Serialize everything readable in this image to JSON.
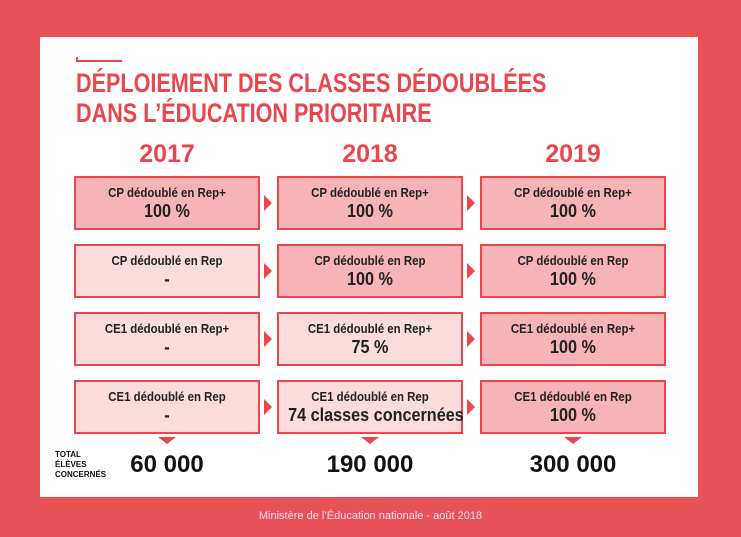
{
  "title_lines": [
    "DÉPLOIEMENT DES CLASSES DÉDOUBLÉES",
    "DANS L’ÉDUCATION PRIORITAIRE"
  ],
  "colors": {
    "accent": "#e8474e",
    "background": "#e85257",
    "full_fill": "#f6b4b6",
    "partial_fill": "#fbdcdd"
  },
  "columns": [
    {
      "year": "2017",
      "total": "60 000",
      "cells": [
        {
          "label": "CP dédoublé en Rep+",
          "value": "100 %",
          "state": "full"
        },
        {
          "label": "CP dédoublé en Rep",
          "value": "-",
          "state": "part"
        },
        {
          "label": "CE1 dédoublé en Rep+",
          "value": "-",
          "state": "part"
        },
        {
          "label": "CE1 dédoublé en Rep",
          "value": "-",
          "state": "part"
        }
      ]
    },
    {
      "year": "2018",
      "total": "190 000",
      "cells": [
        {
          "label": "CP dédoublé en Rep+",
          "value": "100 %",
          "state": "full"
        },
        {
          "label": "CP dédoublé en Rep",
          "value": "100 %",
          "state": "full"
        },
        {
          "label": "CE1 dédoublé en Rep+",
          "value": "75 %",
          "state": "part"
        },
        {
          "label": "CE1 dédoublé en Rep",
          "value": "74 classes concernées",
          "state": "part"
        }
      ]
    },
    {
      "year": "2019",
      "total": "300 000",
      "cells": [
        {
          "label": "CP dédoublé en Rep+",
          "value": "100 %",
          "state": "full"
        },
        {
          "label": "CP dédoublé en Rep",
          "value": "100 %",
          "state": "full"
        },
        {
          "label": "CE1 dédoublé en Rep+",
          "value": "100 %",
          "state": "full"
        },
        {
          "label": "CE1 dédoublé en Rep",
          "value": "100 %",
          "state": "full"
        }
      ]
    }
  ],
  "total_label_lines": [
    "TOTAL",
    "ÉLÈVES",
    "CONCERNÉS"
  ],
  "footer": "Ministère de l’Éducation nationale - août 2018"
}
